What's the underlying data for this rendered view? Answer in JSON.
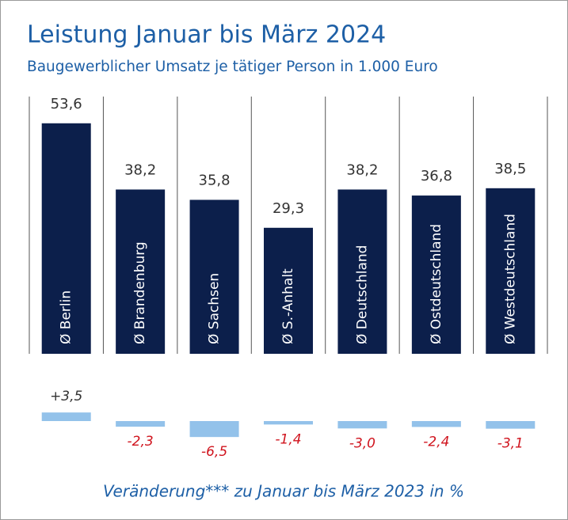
{
  "chart_data": [
    {
      "type": "bar",
      "title": "Leistung Januar bis März 2024",
      "subtitle": "Baugewerblicher Umsatz je tätiger Person in 1.000 Euro",
      "categories": [
        "Ø Berlin",
        "Ø Brandenburg",
        "Ø Sachsen",
        "Ø S.-Anhalt",
        "Ø Deutschland",
        "Ø Ostdeutschland",
        "Ø Westdeutschland"
      ],
      "values": [
        53.6,
        38.2,
        35.8,
        29.3,
        38.2,
        36.8,
        38.5
      ],
      "value_labels": [
        "53,6",
        "38,2",
        "35,8",
        "29,3",
        "38,2",
        "36,8",
        "38,5"
      ],
      "color": "#0c1f4b",
      "ylim": [
        0,
        60
      ]
    },
    {
      "type": "bar",
      "caption": "Veränderung*** zu Januar bis März 2023 in %",
      "values": [
        3.5,
        -2.3,
        -6.5,
        -1.4,
        -3.0,
        -2.4,
        -3.1
      ],
      "value_labels": [
        "+3,5",
        "-2,3",
        "-6,5",
        "-1,4",
        "-3,0",
        "-2,4",
        "-3,1"
      ],
      "color": "#93c2ea",
      "negative_label_color": "#d0141e",
      "ylim": [
        -8,
        5
      ]
    }
  ]
}
